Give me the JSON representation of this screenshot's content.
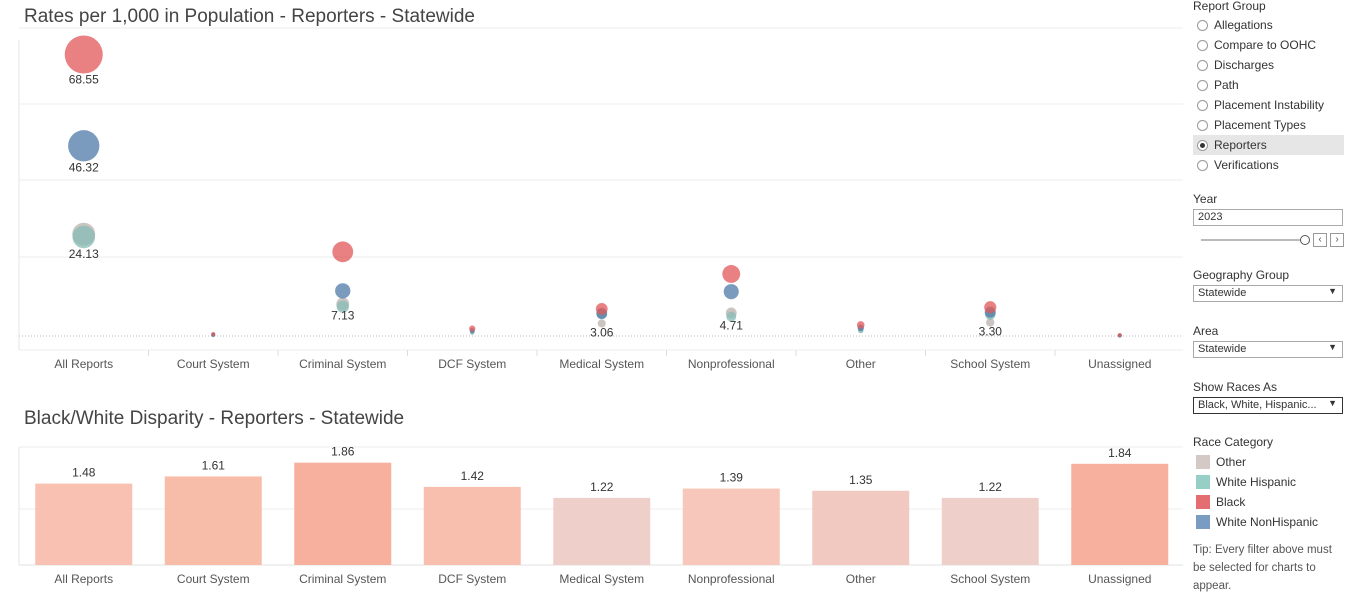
{
  "chart_data": [
    {
      "type": "scatter",
      "title": "Rates per 1,000 in Population - Reporters - Statewide",
      "categories": [
        "All Reports",
        "Court System",
        "Criminal System",
        "DCF System",
        "Medical System",
        "Nonprofessional",
        "Other",
        "School System",
        "Unassigned"
      ],
      "ylim": [
        0,
        75
      ],
      "series": [
        {
          "name": "Black",
          "values": [
            68.55,
            0.5,
            20.5,
            1.8,
            6.6,
            15.1,
            2.7,
            7.0,
            0.2
          ]
        },
        {
          "name": "White NonHispanic",
          "values": [
            46.32,
            0.3,
            11.0,
            1.3,
            5.4,
            10.8,
            2.0,
            5.8,
            0.15
          ]
        },
        {
          "name": "White Hispanic",
          "values": [
            24.13,
            0.25,
            7.13,
            0.9,
            5.6,
            4.71,
            1.3,
            5.2,
            0.1
          ]
        },
        {
          "name": "Other",
          "values": [
            24.8,
            0.2,
            7.8,
            0.8,
            3.06,
            5.6,
            1.5,
            3.3,
            0.1
          ]
        }
      ],
      "data_labels": [
        {
          "category": "All Reports",
          "labels": [
            {
              "text": "68.55",
              "value": 68.55
            },
            {
              "text": "46.32",
              "value": 46.32
            },
            {
              "text": "24.13",
              "value": 24.13
            }
          ]
        },
        {
          "category": "Criminal System",
          "labels": [
            {
              "text": "7.13",
              "value": 7.13
            }
          ]
        },
        {
          "category": "Medical System",
          "labels": [
            {
              "text": "3.06",
              "value": 3.06
            }
          ]
        },
        {
          "category": "Nonprofessional",
          "labels": [
            {
              "text": "4.71",
              "value": 4.71
            }
          ]
        },
        {
          "category": "School System",
          "labels": [
            {
              "text": "3.30",
              "value": 3.3
            }
          ]
        }
      ]
    },
    {
      "type": "bar",
      "title": "Black/White Disparity - Reporters -  Statewide",
      "categories": [
        "All Reports",
        "Court System",
        "Criminal System",
        "DCF System",
        "Medical System",
        "Nonprofessional",
        "Other",
        "School System",
        "Unassigned"
      ],
      "values": [
        1.48,
        1.61,
        1.86,
        1.42,
        1.22,
        1.39,
        1.35,
        1.22,
        1.84
      ],
      "value_labels": [
        "1.48",
        "1.61",
        "1.86",
        "1.42",
        "1.22",
        "1.39",
        "1.35",
        "1.22",
        "1.84"
      ],
      "bar_colors": [
        "#f8c1b1",
        "#f8bda9",
        "#f7b09d",
        "#f8bfaf",
        "#efcfca",
        "#f7c7bb",
        "#f2c9c1",
        "#efcfca",
        "#f7b09d"
      ],
      "ylim": [
        0,
        2
      ]
    }
  ],
  "colors": {
    "Black": "#e15759",
    "White NonHispanic": "#4e79a7",
    "White Hispanic": "#86bcb6",
    "Other": "#bab0ac"
  },
  "panel": {
    "report_group": {
      "heading": "Report Group",
      "options": [
        "Allegations",
        "Compare to OOHC",
        "Discharges",
        "Path",
        "Placement Instability",
        "Placement Types",
        "Reporters",
        "Verifications"
      ],
      "selected": "Reporters"
    },
    "year": {
      "heading": "Year",
      "value": "2023"
    },
    "geography_group": {
      "heading": "Geography Group",
      "value": "Statewide"
    },
    "area": {
      "heading": "Area",
      "value": "Statewide"
    },
    "show_races_as": {
      "heading": "Show Races As",
      "value": "Black, White, Hispanic..."
    },
    "race_category": {
      "heading": "Race Category",
      "items": [
        {
          "label": "Other",
          "color": "#d4c9c4"
        },
        {
          "label": "White Hispanic",
          "color": "#95cfc6"
        },
        {
          "label": "Black",
          "color": "#e46d71"
        },
        {
          "label": "White NonHispanic",
          "color": "#7a9bc2"
        }
      ]
    },
    "tip": "Tip: Every filter above must be selected for charts to appear."
  }
}
